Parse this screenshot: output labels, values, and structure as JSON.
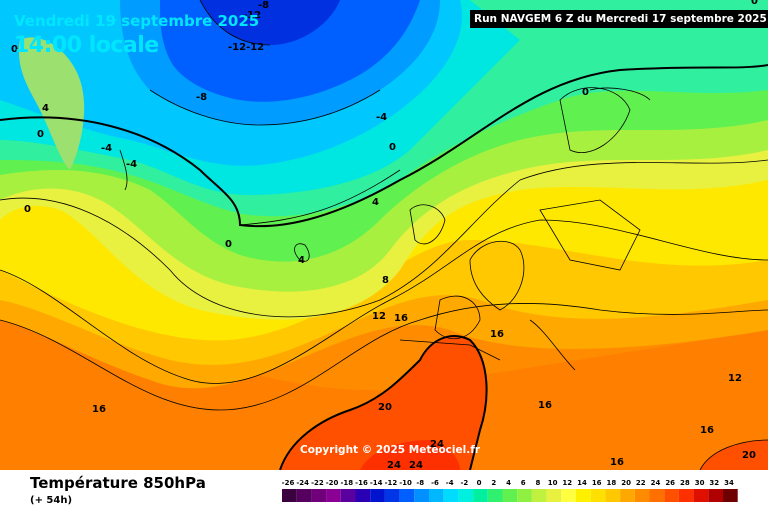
{
  "header": {
    "date": "Vendredi 19 septembre 2025",
    "time": "14:00 locale",
    "run": "Run NAVGEM 6 Z du Mercredi 17 septembre 2025"
  },
  "footer": {
    "variable": "Température 850hPa",
    "step": "(+ 54h)",
    "copyright": "Copyright © 2025 Meteociel.fr"
  },
  "scale": {
    "labels": [
      "-26",
      "-24",
      "-22",
      "-20",
      "-18",
      "-16",
      "-14",
      "-12",
      "-10",
      "-8",
      "-6",
      "-4",
      "-2",
      "0",
      "2",
      "4",
      "6",
      "8",
      "10",
      "12",
      "14",
      "16",
      "18",
      "20",
      "22",
      "24",
      "26",
      "28",
      "30",
      "32",
      "34"
    ],
    "colors": [
      "#3a0040",
      "#55005f",
      "#70007a",
      "#8a0095",
      "#5a00a0",
      "#2a00b5",
      "#0014d0",
      "#0035e8",
      "#0060ff",
      "#0090ff",
      "#00b8ff",
      "#00dcff",
      "#00f0e0",
      "#00f0a0",
      "#30f070",
      "#60f050",
      "#90f040",
      "#c0f040",
      "#e8f040",
      "#ffff40",
      "#fff000",
      "#ffe000",
      "#ffc800",
      "#ffa800",
      "#ff8c00",
      "#ff7000",
      "#ff5000",
      "#ff3000",
      "#e01000",
      "#b00000",
      "#700000"
    ]
  },
  "map_labels": [
    {
      "text": "-8",
      "cls": "label-neg8a"
    },
    {
      "text": "-12",
      "cls": "label-neg12a"
    },
    {
      "text": "-12-12",
      "cls": "label-neg12b"
    },
    {
      "text": "-8",
      "cls": "label-neg8b"
    },
    {
      "text": "-4",
      "cls": "label-neg4a"
    },
    {
      "text": "-4",
      "cls": "label-neg4b"
    },
    {
      "text": "-4",
      "cls": "label-neg4c"
    },
    {
      "text": "0",
      "cls": "label-0a"
    },
    {
      "text": "4",
      "cls": "label-4a"
    },
    {
      "text": "0",
      "cls": "label-0b"
    },
    {
      "text": "0",
      "cls": "label-0c"
    },
    {
      "text": "0",
      "cls": "label-0d"
    },
    {
      "text": "4",
      "cls": "label-4b"
    },
    {
      "text": "0",
      "cls": "label-0e"
    },
    {
      "text": "4",
      "cls": "label-4c"
    },
    {
      "text": "8",
      "cls": "label-8a"
    },
    {
      "text": "12",
      "cls": "label-12a"
    },
    {
      "text": "16",
      "cls": "label-16a"
    },
    {
      "text": "16",
      "cls": "label-16b"
    },
    {
      "text": "16",
      "cls": "label-16c"
    },
    {
      "text": "16",
      "cls": "label-16d"
    },
    {
      "text": "20",
      "cls": "label-20a"
    },
    {
      "text": "24",
      "cls": "label-24a"
    },
    {
      "text": "24",
      "cls": "label-24b"
    },
    {
      "text": "24",
      "cls": "label-24c"
    },
    {
      "text": "16",
      "cls": "label-16e"
    },
    {
      "text": "16",
      "cls": "label-16f"
    },
    {
      "text": "12",
      "cls": "label-12b"
    },
    {
      "text": "20",
      "cls": "label-20b"
    },
    {
      "text": "0",
      "cls": "label-0f"
    },
    {
      "text": "0",
      "cls": "label-0g"
    }
  ]
}
